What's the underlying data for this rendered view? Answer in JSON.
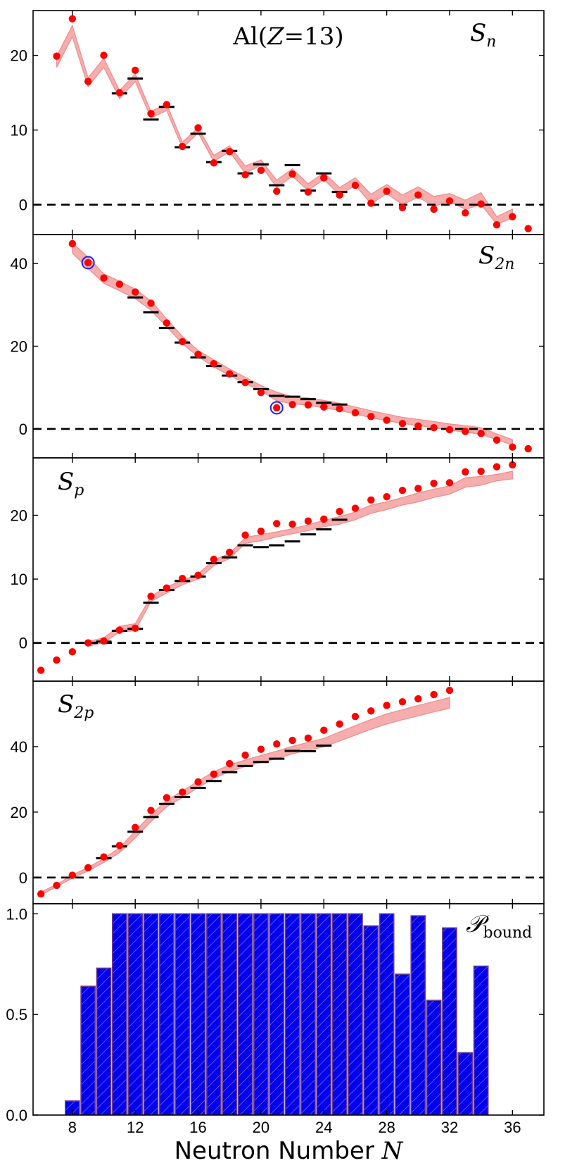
{
  "figure_title": "Al(Z=13)",
  "x_axis": {
    "label": "Neutron Number N",
    "range": [
      5.5,
      38.0
    ],
    "ticks": [
      8,
      12,
      16,
      20,
      24,
      28,
      32,
      36
    ]
  },
  "colors": {
    "theory_band": "#f4a5a5",
    "theory_line": "#f08080",
    "prediction": "#ff0000",
    "experiment": "#000000",
    "highlight_ring": "#1a1aff",
    "bar_fill": "#0000ee",
    "bar_edge": "#6a3a8c",
    "hatch": "#9370db"
  },
  "chart_data": [
    {
      "type": "scatter",
      "title": "Sn",
      "ylim": [
        -4,
        26
      ],
      "yticks": [
        0,
        10,
        20
      ],
      "zero_line": true,
      "predictions": {
        "x": [
          7,
          8,
          9,
          10,
          11,
          12,
          13,
          14,
          15,
          16,
          17,
          18,
          19,
          20,
          21,
          22,
          23,
          24,
          25,
          26,
          27,
          28,
          29,
          30,
          31,
          32,
          33,
          34,
          35,
          36,
          37
        ],
        "y": [
          19.9,
          24.9,
          16.5,
          20.0,
          15.0,
          18.0,
          12.2,
          13.4,
          7.8,
          10.3,
          5.6,
          7.1,
          4.0,
          4.6,
          1.8,
          4.1,
          1.7,
          3.6,
          1.3,
          2.6,
          0.2,
          1.8,
          -0.4,
          1.3,
          -0.6,
          0.5,
          -1.1,
          0.1,
          -2.7,
          -1.6,
          -3.2
        ]
      },
      "experiment": {
        "x": [
          11,
          12,
          13,
          14,
          15,
          16,
          17,
          18,
          19,
          20,
          21,
          22,
          23,
          24,
          25
        ],
        "y": [
          14.9,
          16.9,
          11.4,
          13.1,
          7.7,
          9.5,
          5.7,
          7.2,
          4.2,
          5.4,
          2.6,
          5.3,
          1.9,
          4.2,
          1.7
        ]
      },
      "band": {
        "x": [
          7,
          8,
          9,
          10,
          11,
          12,
          13,
          14,
          15,
          16,
          17,
          18,
          19,
          20,
          21,
          22,
          23,
          24,
          25,
          26,
          27,
          28,
          29,
          30,
          31,
          32,
          33,
          34,
          35,
          36
        ],
        "low": [
          18.4,
          22.5,
          15.8,
          18.4,
          14.2,
          16.5,
          11.6,
          12.6,
          7.6,
          9.6,
          5.8,
          7.1,
          4.2,
          5.3,
          2.3,
          3.8,
          1.9,
          3.4,
          1.3,
          2.6,
          0.1,
          1.5,
          0.0,
          1.0,
          -0.2,
          0.4,
          -0.6,
          0.0,
          -2.6,
          -1.8
        ],
        "high": [
          19.9,
          24.0,
          17.0,
          19.6,
          15.3,
          17.5,
          12.5,
          13.5,
          8.4,
          10.3,
          6.6,
          7.9,
          5.2,
          6.0,
          3.3,
          4.8,
          2.8,
          4.3,
          2.3,
          3.6,
          1.4,
          2.7,
          1.3,
          2.4,
          1.1,
          1.5,
          0.6,
          1.6,
          -1.6,
          -0.6
        ]
      }
    },
    {
      "type": "scatter",
      "title": "S2n",
      "ylim": [
        -7,
        47
      ],
      "yticks": [
        0,
        20,
        40
      ],
      "zero_line": true,
      "predictions": {
        "x": [
          8,
          9,
          10,
          11,
          12,
          13,
          14,
          15,
          16,
          17,
          18,
          19,
          20,
          21,
          22,
          23,
          24,
          25,
          26,
          27,
          28,
          29,
          30,
          31,
          32,
          33,
          34,
          35,
          36,
          37
        ],
        "y": [
          44.8,
          40.2,
          36.5,
          35.0,
          33.1,
          30.4,
          25.6,
          21.1,
          18.0,
          15.8,
          13.3,
          11.2,
          8.8,
          5.1,
          5.9,
          5.8,
          5.3,
          4.9,
          3.9,
          3.0,
          2.1,
          1.3,
          0.7,
          0.3,
          -0.2,
          -0.6,
          -1.1,
          -2.7,
          -4.4,
          -4.8
        ]
      },
      "experiment": {
        "x": [
          12,
          13,
          14,
          15,
          16,
          17,
          18,
          19,
          20,
          21,
          22,
          23,
          24,
          25
        ],
        "y": [
          31.8,
          28.2,
          24.4,
          20.9,
          17.3,
          15.2,
          12.9,
          11.3,
          9.6,
          8.0,
          7.8,
          7.2,
          6.3,
          5.9
        ]
      },
      "highlighted": {
        "x": [
          9,
          21
        ],
        "y": [
          40.2,
          5.1
        ]
      },
      "band": {
        "x": [
          8,
          9,
          10,
          11,
          12,
          13,
          14,
          15,
          16,
          17,
          18,
          19,
          20,
          21,
          22,
          23,
          24,
          25,
          26,
          27,
          28,
          29,
          30,
          31,
          32,
          33,
          34,
          35,
          36
        ],
        "low": [
          42.5,
          38.8,
          35.2,
          33.4,
          31.5,
          28.7,
          24.7,
          20.6,
          17.5,
          15.0,
          12.9,
          11.0,
          9.2,
          6.8,
          6.1,
          5.7,
          5.1,
          4.5,
          3.6,
          2.7,
          2.0,
          1.3,
          0.8,
          0.3,
          -0.3,
          -0.8,
          -1.3,
          -2.6,
          -3.9
        ],
        "high": [
          45.0,
          41.5,
          37.5,
          35.7,
          33.8,
          31.0,
          26.6,
          22.4,
          19.0,
          16.7,
          14.5,
          12.5,
          10.5,
          8.9,
          7.8,
          7.5,
          6.9,
          6.2,
          5.3,
          4.4,
          3.6,
          2.8,
          2.3,
          1.8,
          1.2,
          0.8,
          0.3,
          -1.2,
          -2.6
        ]
      }
    },
    {
      "type": "scatter",
      "title": "Sp",
      "ylim": [
        -6,
        29
      ],
      "yticks": [
        0,
        10,
        20
      ],
      "zero_line": true,
      "predictions": {
        "x": [
          6,
          7,
          8,
          9,
          10,
          11,
          12,
          13,
          14,
          15,
          16,
          17,
          18,
          19,
          20,
          21,
          22,
          23,
          24,
          25,
          26,
          27,
          28,
          29,
          30,
          31,
          32,
          33,
          34,
          35,
          36
        ],
        "y": [
          -4.3,
          -2.7,
          -1.4,
          0.0,
          0.3,
          2.0,
          2.3,
          7.3,
          8.6,
          10.1,
          10.6,
          13.1,
          14.2,
          16.9,
          17.5,
          18.7,
          18.6,
          19.1,
          19.4,
          20.6,
          21.1,
          22.4,
          22.9,
          23.9,
          24.2,
          25.0,
          25.1,
          26.8,
          26.9,
          27.6,
          27.9
        ]
      },
      "experiment": {
        "x": [
          9,
          10,
          11,
          12,
          13,
          14,
          15,
          16,
          17,
          18,
          19,
          20,
          21,
          22,
          23,
          24,
          25
        ],
        "y": [
          0.0,
          0.2,
          1.9,
          2.2,
          6.3,
          8.3,
          9.7,
          10.4,
          12.5,
          13.4,
          15.3,
          15.0,
          15.3,
          15.9,
          17.0,
          17.8,
          19.3
        ]
      },
      "band": {
        "x": [
          9,
          10,
          11,
          12,
          13,
          14,
          15,
          16,
          17,
          18,
          19,
          20,
          21,
          22,
          23,
          24,
          25,
          26,
          27,
          28,
          29,
          30,
          31,
          32,
          33,
          34,
          35,
          36
        ],
        "low": [
          -0.5,
          0.0,
          1.7,
          1.9,
          6.5,
          7.8,
          9.1,
          10.0,
          12.1,
          13.2,
          15.6,
          16.0,
          16.6,
          17.1,
          17.6,
          18.2,
          18.6,
          19.3,
          20.3,
          20.9,
          21.6,
          22.1,
          22.8,
          23.3,
          24.4,
          24.7,
          25.4,
          25.7
        ],
        "high": [
          0.2,
          0.8,
          2.6,
          3.0,
          7.3,
          8.8,
          9.8,
          10.8,
          13.0,
          14.0,
          16.5,
          17.0,
          17.4,
          17.9,
          18.5,
          19.2,
          19.8,
          20.5,
          21.6,
          22.1,
          22.8,
          23.5,
          24.1,
          24.6,
          25.9,
          26.1,
          26.4,
          26.9
        ]
      }
    },
    {
      "type": "scatter",
      "title": "S2p",
      "ylim": [
        -8,
        60
      ],
      "yticks": [
        0,
        20,
        40
      ],
      "zero_line": true,
      "predictions": {
        "x": [
          6,
          7,
          8,
          9,
          10,
          11,
          12,
          13,
          14,
          15,
          16,
          17,
          18,
          19,
          20,
          21,
          22,
          23,
          24,
          25,
          26,
          27,
          28,
          29,
          30,
          31,
          32
        ],
        "y": [
          -5.0,
          -2.4,
          0.7,
          3.0,
          6.3,
          9.8,
          15.3,
          20.5,
          24.4,
          26.1,
          29.2,
          31.6,
          34.8,
          37.4,
          39.2,
          40.8,
          41.9,
          42.6,
          45.0,
          46.9,
          49.2,
          50.9,
          52.6,
          53.7,
          54.6,
          55.9,
          57.2
        ]
      },
      "experiment": {
        "x": [
          10,
          11,
          12,
          13,
          14,
          15,
          16,
          17,
          18,
          19,
          20,
          21,
          22,
          23,
          24
        ],
        "y": [
          5.9,
          9.5,
          14.0,
          18.5,
          22.5,
          24.6,
          27.4,
          29.5,
          32.2,
          34.1,
          35.3,
          36.3,
          38.7,
          38.6,
          40.3
        ]
      },
      "band": {
        "x": [
          6,
          7,
          8,
          9,
          10,
          11,
          12,
          13,
          14,
          15,
          16,
          17,
          18,
          19,
          20,
          21,
          22,
          23,
          24,
          25,
          26,
          27,
          28,
          29,
          30,
          31,
          32
        ],
        "low": [
          -5.3,
          -2.8,
          -0.2,
          2.0,
          4.6,
          7.6,
          12.1,
          17.1,
          21.6,
          24.4,
          27.5,
          30.3,
          32.4,
          33.9,
          35.2,
          36.3,
          37.8,
          38.9,
          39.9,
          41.7,
          43.5,
          45.3,
          46.9,
          48.2,
          49.4,
          50.6,
          51.7
        ],
        "high": [
          -4.4,
          -2.1,
          0.8,
          3.1,
          5.8,
          9.1,
          14.2,
          19.2,
          23.6,
          26.4,
          29.5,
          32.3,
          34.4,
          35.9,
          37.3,
          38.6,
          40.1,
          41.3,
          42.5,
          44.5,
          46.4,
          48.3,
          50.0,
          51.3,
          52.6,
          53.8,
          55.0
        ]
      }
    },
    {
      "type": "bar",
      "title": "Pbound",
      "ylim": [
        0,
        1.05
      ],
      "yticks": [
        0.0,
        0.5,
        1.0
      ],
      "ytick_labels": [
        "0.0",
        "0.5",
        "1.0"
      ],
      "x": [
        8,
        9,
        10,
        11,
        12,
        13,
        14,
        15,
        16,
        17,
        18,
        19,
        20,
        21,
        22,
        23,
        24,
        25,
        26,
        27,
        28,
        29,
        30,
        31,
        32,
        33,
        34
      ],
      "values": [
        0.07,
        0.64,
        0.73,
        1.0,
        1.0,
        1.0,
        1.0,
        1.0,
        1.0,
        1.0,
        1.0,
        1.0,
        1.0,
        1.0,
        1.0,
        1.0,
        1.0,
        1.0,
        1.0,
        0.94,
        1.0,
        0.7,
        0.99,
        0.57,
        0.93,
        0.31,
        0.74
      ]
    }
  ]
}
